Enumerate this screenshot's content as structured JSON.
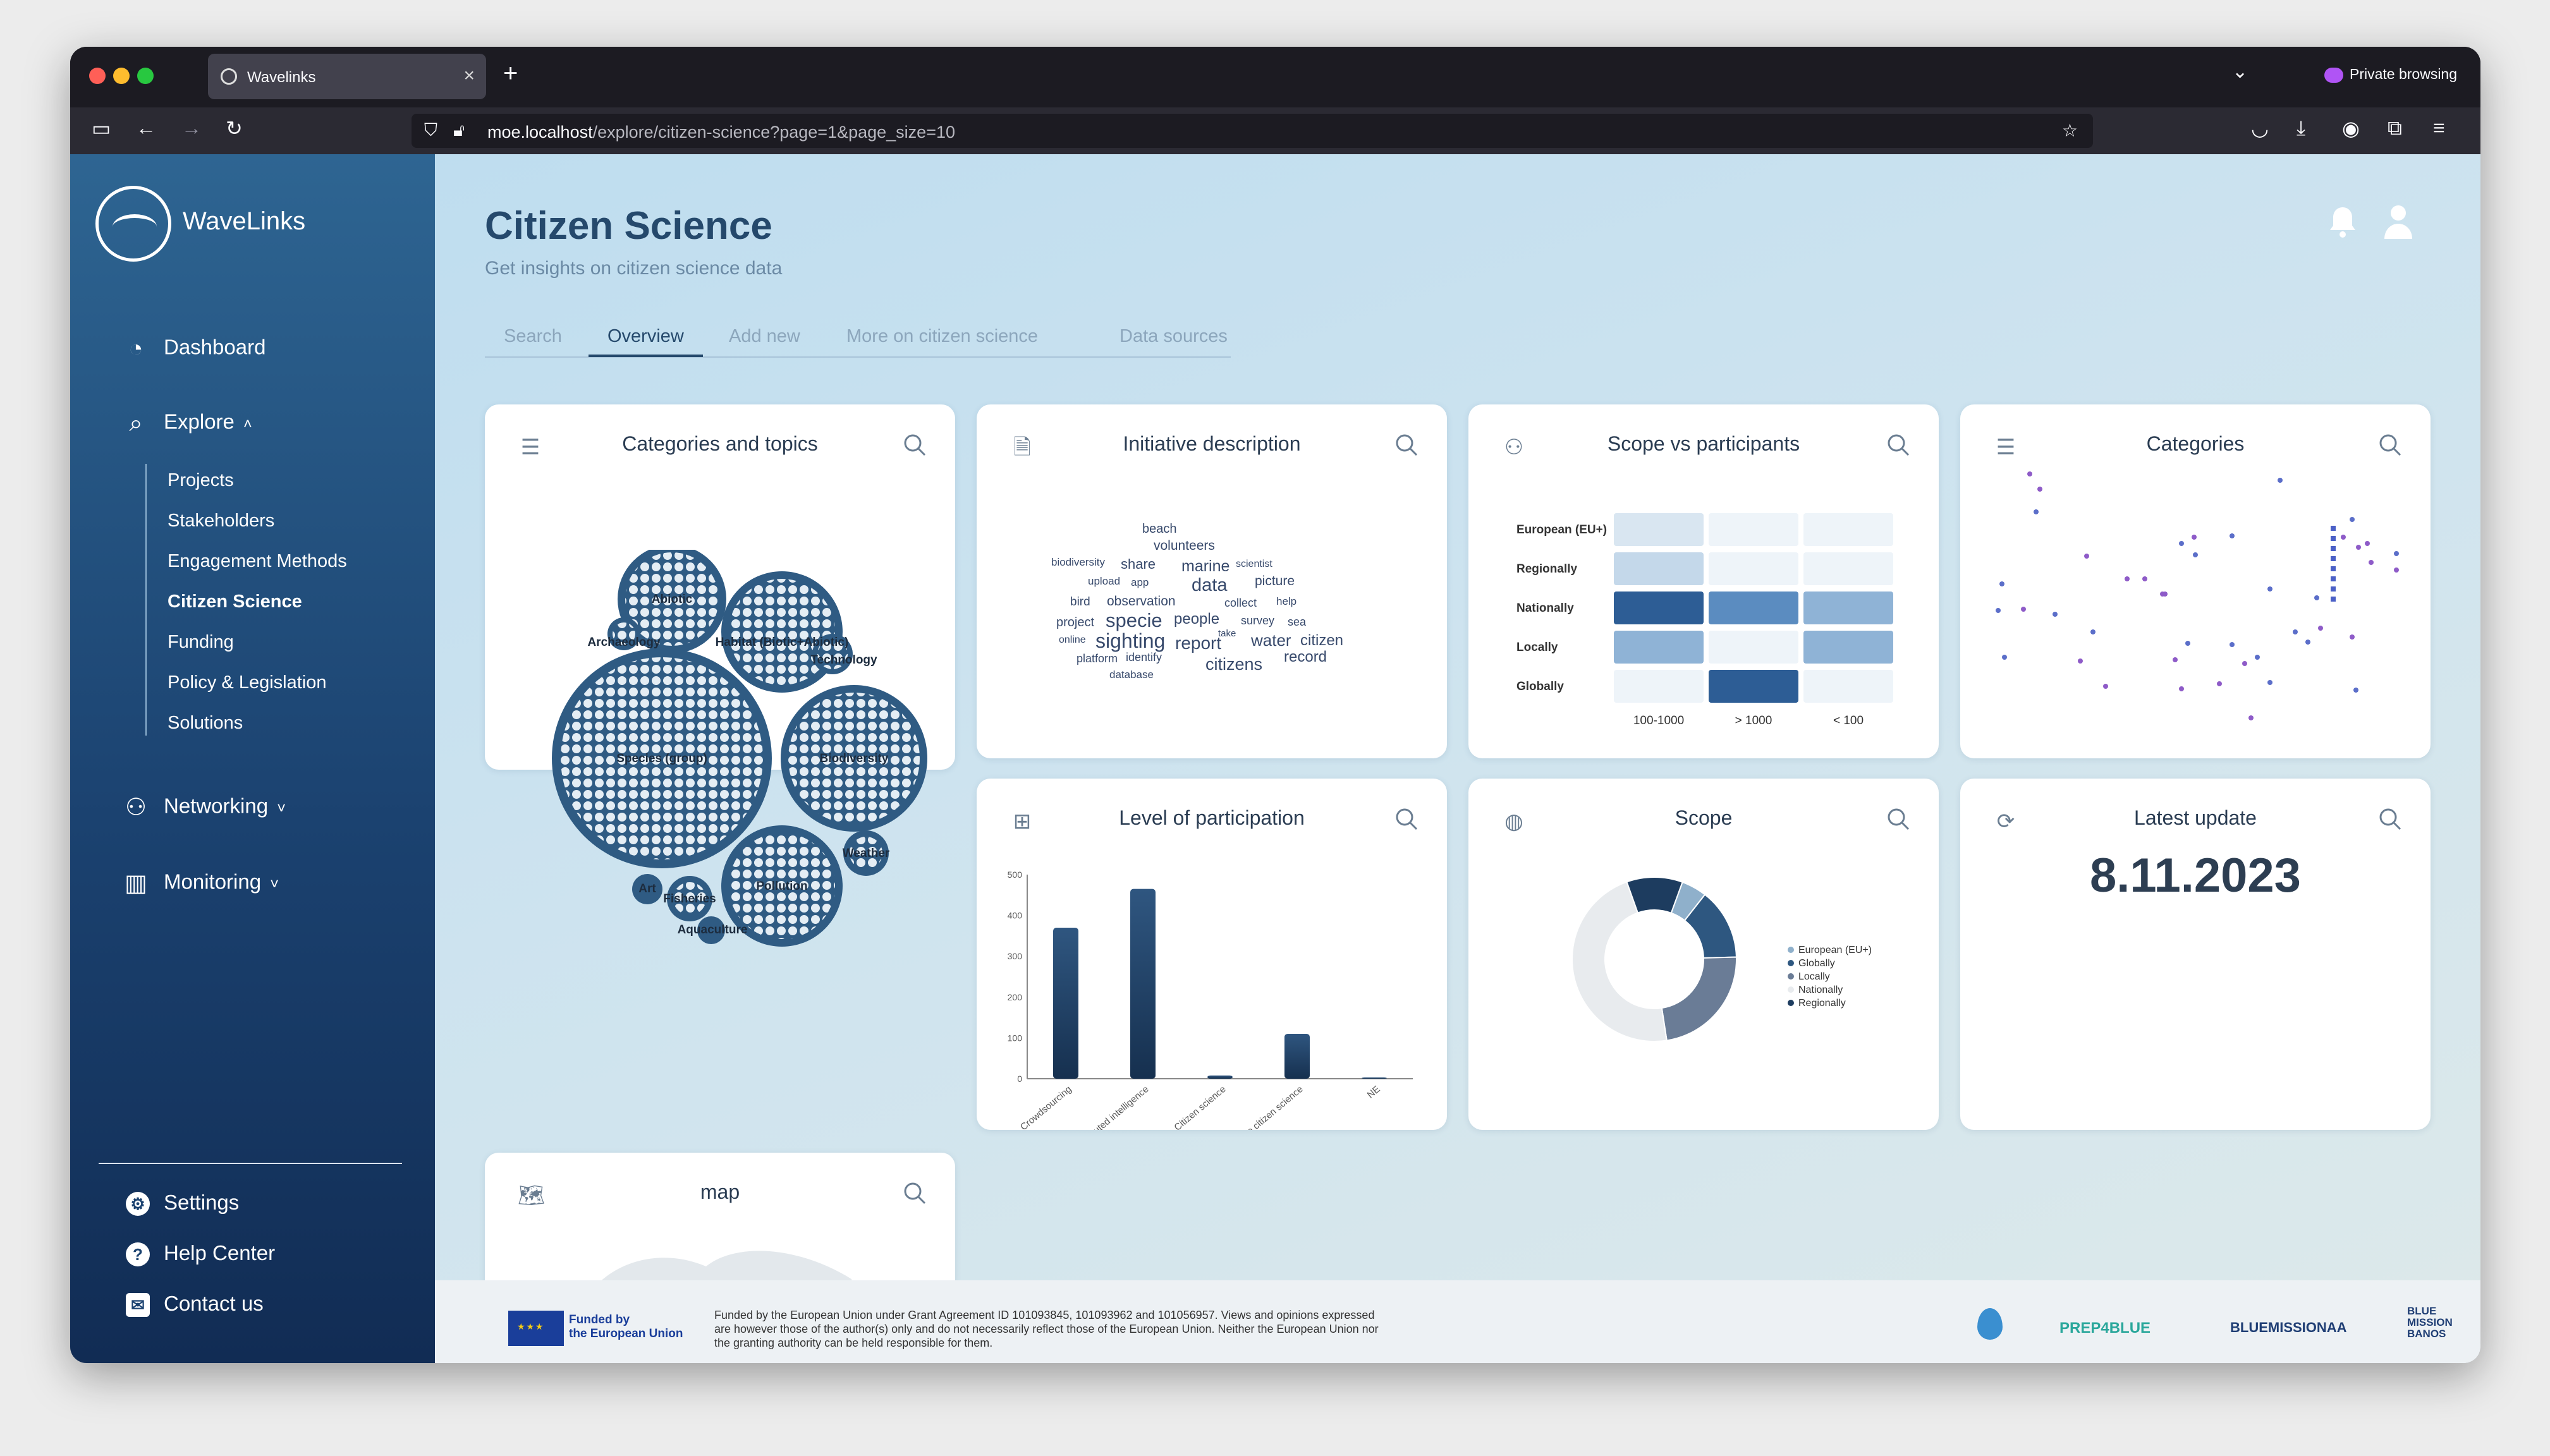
{
  "browser": {
    "tab_title": "Wavelinks",
    "new_tab": "+",
    "private_label": "Private browsing",
    "url_host": "moe.localhost",
    "url_path": "/explore/citizen-science?page=1&page_size=10"
  },
  "sidebar": {
    "brand": "WaveLinks",
    "dashboard": "Dashboard",
    "explore": "Explore",
    "explore_items": [
      "Projects",
      "Stakeholders",
      "Engagement Methods",
      "Citizen Science",
      "Funding",
      "Policy & Legislation",
      "Solutions"
    ],
    "active_item": "Citizen Science",
    "networking": "Networking",
    "monitoring": "Monitoring",
    "settings": "Settings",
    "help": "Help Center",
    "contact": "Contact us"
  },
  "header": {
    "title": "Citizen Science",
    "subtitle": "Get insights on citizen science data"
  },
  "tabs": [
    "Search",
    "Overview",
    "Add new",
    "More on citizen science",
    "Data sources"
  ],
  "active_tab": "Overview",
  "cards": {
    "categories_topics": "Categories and topics",
    "initiative": "Initiative description",
    "scope_participants": "Scope vs participants",
    "categories": "Categories",
    "participation": "Level of participation",
    "scope": "Scope",
    "latest_update": "Latest update",
    "map": "map"
  },
  "bubble_labels": [
    "Abiotic",
    "Archaeology",
    "Habitat (Biotic+Abiotic)",
    "Technology",
    "Species (group)",
    "Biodiversity",
    "Pollution",
    "Weather",
    "Art",
    "Fisheries",
    "Aquaculture"
  ],
  "word_cloud": [
    "beach",
    "volunteers",
    "biodiversity",
    "share",
    "marine",
    "scientist",
    "upload",
    "app",
    "data",
    "picture",
    "bird",
    "observation",
    "collect",
    "help",
    "project",
    "specie",
    "people",
    "survey",
    "sea",
    "take",
    "online",
    "sighting",
    "report",
    "water",
    "citizen",
    "platform",
    "identify",
    "record",
    "database",
    "citizens"
  ],
  "latest_update_value": "8.11.2023",
  "chart_data": [
    {
      "type": "heatmap",
      "title": "Scope vs participants",
      "rows": [
        "European (EU+)",
        "Regionally",
        "Nationally",
        "Locally",
        "Globally"
      ],
      "columns": [
        "100-1000",
        "> 1000",
        "< 100"
      ],
      "values": [
        [
          1,
          0,
          0
        ],
        [
          2,
          0,
          0
        ],
        [
          5,
          4,
          3
        ],
        [
          3,
          0,
          3
        ],
        [
          0,
          5,
          0
        ]
      ]
    },
    {
      "type": "bar",
      "title": "Level of participation",
      "categories": [
        "Crowdsourcing",
        "Distributed intelligence",
        "Citizen science",
        "Extreme citizen science",
        "NE"
      ],
      "values": [
        370,
        465,
        8,
        110,
        3
      ],
      "yticks": [
        0,
        100,
        200,
        300,
        400,
        500
      ],
      "ylim": [
        0,
        500
      ]
    },
    {
      "type": "pie",
      "title": "Scope",
      "labels": [
        "European (EU+)",
        "Globally",
        "Locally",
        "Nationally",
        "Regionally"
      ],
      "values": [
        5,
        14,
        23,
        47,
        11
      ],
      "colors": [
        "#8fb0cb",
        "#2e5780",
        "#6a7c96",
        "#e8ebee",
        "#1d3c5f"
      ]
    }
  ],
  "footer": {
    "funded": "Funded by\nthe European Union",
    "disclaimer": "Funded by the European Union under Grant Agreement ID 101093845, 101093962 and 101056957. Views and opinions expressed are however those of the author(s) only and do not necessarily reflect those of the European Union. Neither the European Union nor the granting authority can be held responsible for them.",
    "partner1": "PREP4BLUE",
    "partner2": "BLUEMISSIONAA",
    "partner3": "BLUE\nMISSION\nBANOS"
  }
}
